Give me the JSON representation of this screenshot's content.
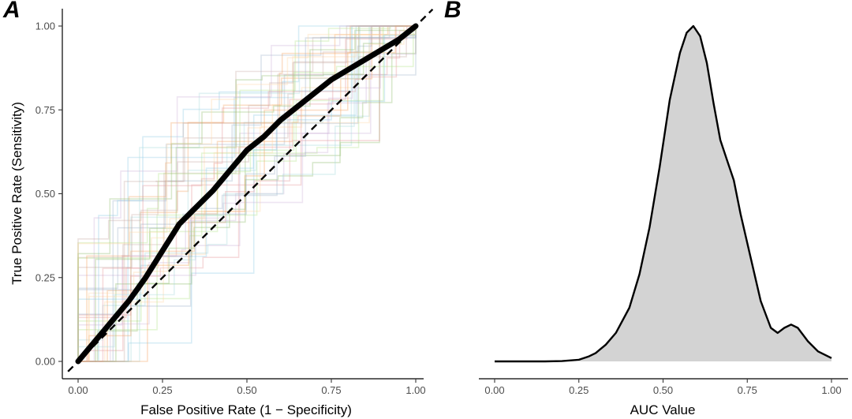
{
  "chart_data": [
    {
      "panel_label": "A",
      "type": "line",
      "subtype": "roc-curves",
      "title": "",
      "xlabel": "False Positive Rate (1 − Specificity)",
      "ylabel": "True Positive Rate (Sensitivity)",
      "xlim": [
        0,
        1
      ],
      "ylim": [
        0,
        1
      ],
      "x_ticks": [
        0,
        0.25,
        0.5,
        0.75,
        1
      ],
      "x_tick_labels": [
        "0.00",
        "0.25",
        "0.50",
        "0.75",
        "1.00"
      ],
      "y_ticks": [
        0,
        0.25,
        0.5,
        0.75,
        1
      ],
      "y_tick_labels": [
        "0.00",
        "0.25",
        "0.50",
        "0.75",
        "1.00"
      ],
      "grid": false,
      "background_curve_count": 40,
      "background_curve_colors": [
        "#8ecae6",
        "#e5989b",
        "#b5e48c",
        "#cdb4db",
        "#a8dadc",
        "#f4a261",
        "#9fb3c8",
        "#c9ada7",
        "#90be6d",
        "#ffd6a5"
      ],
      "series": [
        {
          "name": "mean ROC",
          "color": "#000000",
          "x": [
            0,
            0.05,
            0.1,
            0.15,
            0.2,
            0.25,
            0.3,
            0.35,
            0.4,
            0.45,
            0.5,
            0.55,
            0.6,
            0.65,
            0.7,
            0.75,
            0.8,
            0.85,
            0.9,
            0.95,
            1.0
          ],
          "y": [
            0,
            0.06,
            0.12,
            0.18,
            0.25,
            0.33,
            0.41,
            0.46,
            0.51,
            0.57,
            0.63,
            0.67,
            0.72,
            0.76,
            0.8,
            0.84,
            0.87,
            0.9,
            0.93,
            0.96,
            1.0
          ]
        },
        {
          "name": "chance diagonal",
          "color": "#000000",
          "line_style": "dashed",
          "x": [
            -0.03,
            1.05
          ],
          "y": [
            -0.03,
            1.05
          ]
        }
      ]
    },
    {
      "panel_label": "B",
      "type": "area",
      "subtype": "density",
      "title": "",
      "xlabel": "AUC Value",
      "ylabel": "",
      "xlim": [
        0,
        1
      ],
      "ylim": [
        0,
        1
      ],
      "x_ticks": [
        0,
        0.25,
        0.5,
        0.75,
        1
      ],
      "x_tick_labels": [
        "0.00",
        "0.25",
        "0.50",
        "0.75",
        "1.00"
      ],
      "fill_color": "#d3d3d3",
      "line_color": "#000000",
      "series": [
        {
          "name": "AUC density (scaled)",
          "x": [
            0,
            0.05,
            0.1,
            0.15,
            0.2,
            0.25,
            0.28,
            0.3,
            0.33,
            0.36,
            0.4,
            0.43,
            0.46,
            0.49,
            0.52,
            0.55,
            0.57,
            0.59,
            0.61,
            0.63,
            0.65,
            0.67,
            0.69,
            0.71,
            0.73,
            0.76,
            0.79,
            0.82,
            0.84,
            0.86,
            0.88,
            0.9,
            0.93,
            0.96,
            1.0
          ],
          "y": [
            0,
            0,
            0,
            0,
            0.001,
            0.005,
            0.015,
            0.025,
            0.05,
            0.085,
            0.16,
            0.26,
            0.4,
            0.58,
            0.78,
            0.92,
            0.98,
            1.0,
            0.97,
            0.89,
            0.77,
            0.66,
            0.6,
            0.54,
            0.44,
            0.31,
            0.18,
            0.1,
            0.085,
            0.1,
            0.11,
            0.1,
            0.06,
            0.03,
            0.01
          ]
        }
      ]
    }
  ]
}
